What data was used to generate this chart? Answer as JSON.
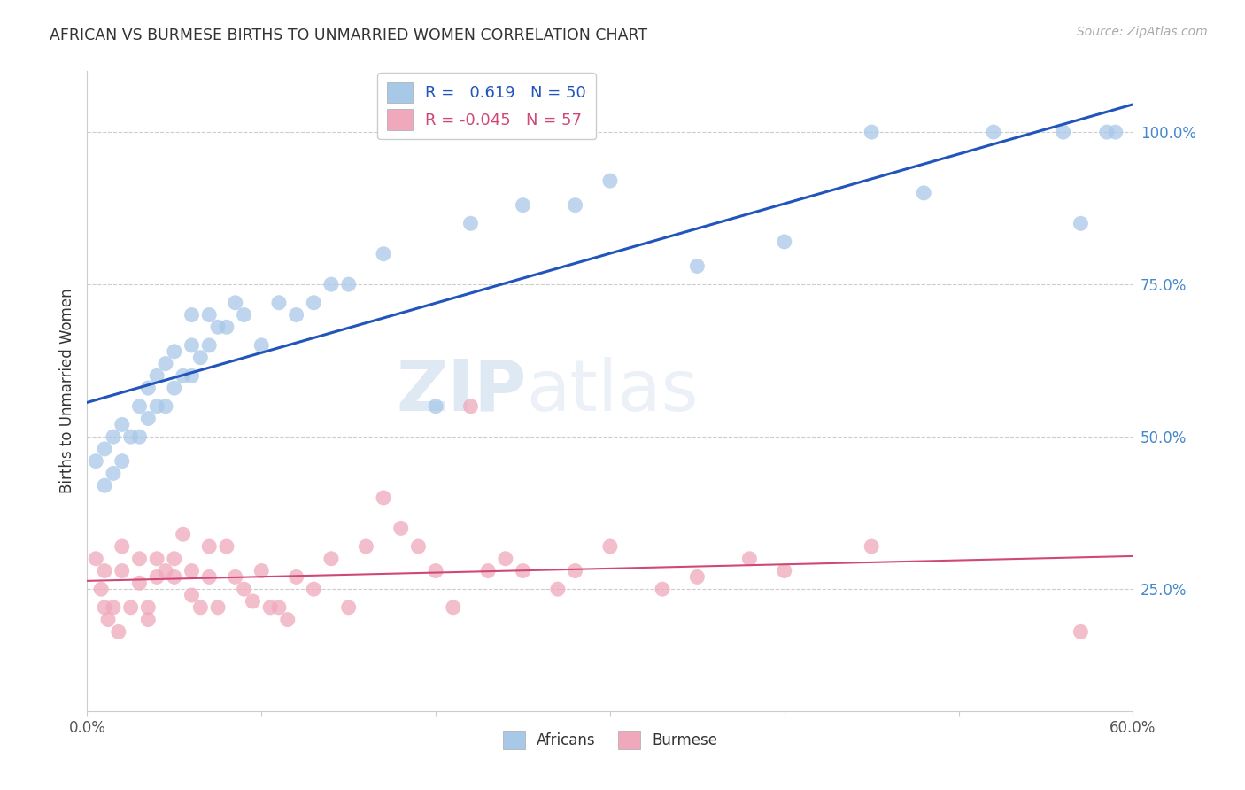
{
  "title": "AFRICAN VS BURMESE BIRTHS TO UNMARRIED WOMEN CORRELATION CHART",
  "source": "Source: ZipAtlas.com",
  "ylabel": "Births to Unmarried Women",
  "ytick_values": [
    25,
    50,
    75,
    100
  ],
  "xlim": [
    0,
    60
  ],
  "ylim": [
    5,
    110
  ],
  "watermark_zip": "ZIP",
  "watermark_atlas": "atlas",
  "legend_blue_r": "0.619",
  "legend_blue_n": "50",
  "legend_pink_r": "-0.045",
  "legend_pink_n": "57",
  "blue_color": "#a8c8e8",
  "pink_color": "#f0a8bc",
  "line_blue": "#2255bb",
  "line_pink": "#d04878",
  "ytick_color": "#4488cc",
  "background_color": "#ffffff",
  "grid_color": "#cccccc",
  "africans_x": [
    0.5,
    1.0,
    1.0,
    1.5,
    1.5,
    2.0,
    2.0,
    2.5,
    3.0,
    3.0,
    3.5,
    3.5,
    4.0,
    4.0,
    4.5,
    4.5,
    5.0,
    5.0,
    5.5,
    6.0,
    6.0,
    6.0,
    6.5,
    7.0,
    7.0,
    7.5,
    8.0,
    8.5,
    9.0,
    10.0,
    11.0,
    12.0,
    13.0,
    14.0,
    15.0,
    17.0,
    20.0,
    22.0,
    25.0,
    28.0,
    30.0,
    35.0,
    40.0,
    45.0,
    48.0,
    52.0,
    56.0,
    57.0,
    58.5,
    59.0
  ],
  "africans_y": [
    46,
    42,
    48,
    44,
    50,
    46,
    52,
    50,
    50,
    55,
    53,
    58,
    55,
    60,
    55,
    62,
    58,
    64,
    60,
    60,
    65,
    70,
    63,
    65,
    70,
    68,
    68,
    72,
    70,
    65,
    72,
    70,
    72,
    75,
    75,
    80,
    55,
    85,
    88,
    88,
    92,
    78,
    82,
    100,
    90,
    100,
    100,
    85,
    100,
    100
  ],
  "burmese_x": [
    0.5,
    0.8,
    1.0,
    1.0,
    1.2,
    1.5,
    1.8,
    2.0,
    2.0,
    2.5,
    3.0,
    3.0,
    3.5,
    3.5,
    4.0,
    4.0,
    4.5,
    5.0,
    5.0,
    5.5,
    6.0,
    6.0,
    6.5,
    7.0,
    7.0,
    7.5,
    8.0,
    8.5,
    9.0,
    9.5,
    10.0,
    10.5,
    11.0,
    11.5,
    12.0,
    13.0,
    14.0,
    15.0,
    16.0,
    17.0,
    18.0,
    19.0,
    20.0,
    21.0,
    22.0,
    23.0,
    24.0,
    25.0,
    27.0,
    28.0,
    30.0,
    33.0,
    35.0,
    38.0,
    40.0,
    45.0,
    57.0
  ],
  "burmese_y": [
    30,
    25,
    28,
    22,
    20,
    22,
    18,
    32,
    28,
    22,
    30,
    26,
    22,
    20,
    30,
    27,
    28,
    30,
    27,
    34,
    28,
    24,
    22,
    32,
    27,
    22,
    32,
    27,
    25,
    23,
    28,
    22,
    22,
    20,
    27,
    25,
    30,
    22,
    32,
    40,
    35,
    32,
    28,
    22,
    55,
    28,
    30,
    28,
    25,
    28,
    32,
    25,
    27,
    30,
    28,
    32,
    18
  ]
}
